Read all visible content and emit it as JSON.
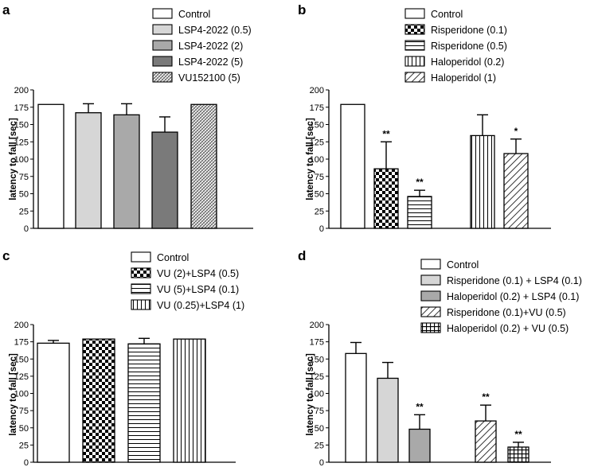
{
  "chart_data": [
    {
      "type": "bar",
      "panel_label": "a",
      "ylabel": "latency to fall [sec]",
      "ylim": [
        0,
        200
      ],
      "yticks": [
        0,
        25,
        50,
        75,
        100,
        125,
        150,
        175,
        200
      ],
      "series": [
        {
          "name": "Control",
          "value": 179,
          "error": 0,
          "sig": "",
          "fill": "white",
          "group": 0
        },
        {
          "name": "LSP4-2022 (0.5)",
          "value": 167,
          "error": 13,
          "sig": "",
          "fill": "light",
          "group": 0
        },
        {
          "name": "LSP4-2022 (2)",
          "value": 164,
          "error": 16,
          "sig": "",
          "fill": "mid",
          "group": 0
        },
        {
          "name": "LSP4-2022 (5)",
          "value": 139,
          "error": 22,
          "sig": "",
          "fill": "dark",
          "group": 0
        },
        {
          "name": "VU152100 (5)",
          "value": 179,
          "error": 0,
          "sig": "",
          "fill": "dense",
          "group": 0
        }
      ]
    },
    {
      "type": "bar",
      "panel_label": "b",
      "ylabel": "latency to fall [sec]",
      "ylim": [
        0,
        200
      ],
      "yticks": [
        0,
        25,
        50,
        75,
        100,
        125,
        150,
        175,
        200
      ],
      "series": [
        {
          "name": "Control",
          "value": 179,
          "error": 0,
          "sig": "",
          "fill": "white",
          "group": 0
        },
        {
          "name": "Risperidone  (0.1)",
          "value": 86,
          "error": 39,
          "sig": "**",
          "fill": "check",
          "group": 0
        },
        {
          "name": "Risperidone  (0.5)",
          "value": 46,
          "error": 9,
          "sig": "**",
          "fill": "hlines",
          "group": 0
        },
        {
          "name": "Haloperidol (0.2)",
          "value": 134,
          "error": 30,
          "sig": "",
          "fill": "vlines",
          "group": 1
        },
        {
          "name": "Haloperidol (1)",
          "value": 108,
          "error": 21,
          "sig": "*",
          "fill": "diag",
          "group": 1
        }
      ]
    },
    {
      "type": "bar",
      "panel_label": "c",
      "ylabel": "latency to fall [sec]",
      "ylim": [
        0,
        200
      ],
      "yticks": [
        0,
        25,
        50,
        75,
        100,
        125,
        150,
        175,
        200
      ],
      "series": [
        {
          "name": "Control",
          "value": 173,
          "error": 4,
          "sig": "",
          "fill": "white",
          "group": 0
        },
        {
          "name": "VU (2)+LSP4 (0.5)",
          "value": 179,
          "error": 0,
          "sig": "",
          "fill": "check",
          "group": 0
        },
        {
          "name": "VU (5)+LSP4 (0.1)",
          "value": 172,
          "error": 8,
          "sig": "",
          "fill": "hlines",
          "group": 0
        },
        {
          "name": "VU (0.25)+LSP4 (1)",
          "value": 179,
          "error": 0,
          "sig": "",
          "fill": "vlines",
          "group": 0
        }
      ]
    },
    {
      "type": "bar",
      "panel_label": "d",
      "ylabel": "latency to fall [sec]",
      "ylim": [
        0,
        200
      ],
      "yticks": [
        0,
        25,
        50,
        75,
        100,
        125,
        150,
        175,
        200
      ],
      "series": [
        {
          "name": "Control",
          "value": 158,
          "error": 16,
          "sig": "",
          "fill": "white",
          "group": 0
        },
        {
          "name": "Risperidone (0.1) + LSP4 (0.1)",
          "value": 122,
          "error": 23,
          "sig": "",
          "fill": "light",
          "group": 0
        },
        {
          "name": "Haloperidol (0.2) + LSP4 (0.1)",
          "value": 48,
          "error": 21,
          "sig": "**",
          "fill": "mid",
          "group": 0
        },
        {
          "name": "Risperidone (0.1)+VU (0.5)",
          "value": 60,
          "error": 23,
          "sig": "**",
          "fill": "diag",
          "group": 1
        },
        {
          "name": "Haloperidol (0.2) + VU (0.5)",
          "value": 22,
          "error": 7,
          "sig": "**",
          "fill": "grid",
          "group": 1
        }
      ]
    }
  ],
  "colors": {
    "axis": "#000000",
    "light": "#d6d6d6",
    "mid": "#a9a9a9",
    "dark": "#7a7a7a"
  }
}
